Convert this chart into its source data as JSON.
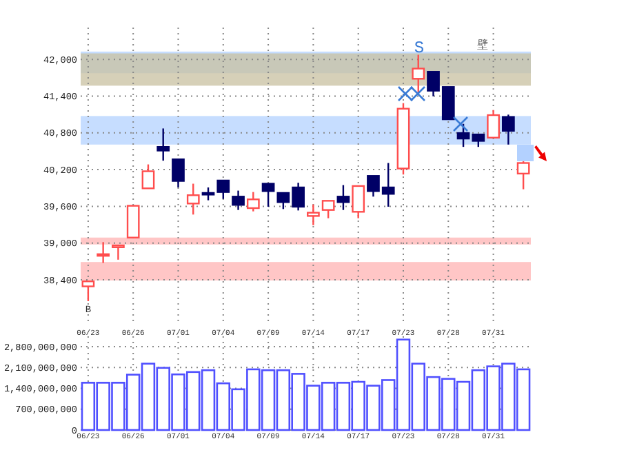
{
  "chart_data": [
    {
      "type": "candlestick",
      "categories": [
        "06/23",
        null,
        null,
        "06/26",
        null,
        null,
        "07/01",
        null,
        null,
        "07/04",
        null,
        null,
        "07/09",
        null,
        null,
        "07/14",
        null,
        null,
        "07/17",
        null,
        null,
        "07/23",
        null,
        null,
        "07/28",
        null,
        null,
        "07/31",
        null,
        null
      ],
      "ohlc": [
        [
          38293,
          38375,
          38052,
          38375
        ],
        [
          38819,
          39015,
          38676,
          38819
        ],
        [
          38932,
          38962,
          38729,
          38962
        ],
        [
          39090,
          39609,
          39090,
          39609
        ],
        [
          39894,
          40285,
          39894,
          40173
        ],
        [
          40571,
          40872,
          40346,
          40511
        ],
        [
          40368,
          40368,
          39909,
          40015
        ],
        [
          39646,
          39970,
          39466,
          39782
        ],
        [
          39819,
          39909,
          39699,
          39804
        ],
        [
          40022,
          40022,
          39721,
          39834
        ],
        [
          39759,
          39857,
          39541,
          39624
        ],
        [
          39571,
          39834,
          39518,
          39714
        ],
        [
          39970,
          39970,
          39594,
          39849
        ],
        [
          39819,
          39819,
          39556,
          39669
        ],
        [
          39909,
          39985,
          39533,
          39594
        ],
        [
          39443,
          39631,
          39293,
          39496
        ],
        [
          39541,
          39691,
          39406,
          39691
        ],
        [
          39759,
          39947,
          39541,
          39669
        ],
        [
          39511,
          39932,
          39406,
          39932
        ],
        [
          40097,
          40097,
          39759,
          39849
        ],
        [
          39909,
          40308,
          39594,
          39804
        ],
        [
          40218,
          41286,
          40120,
          41195
        ],
        [
          41684,
          42075,
          41436,
          41850
        ],
        [
          41797,
          41797,
          41398,
          41489
        ],
        [
          41549,
          41549,
          41022,
          41022
        ],
        [
          40797,
          40947,
          40571,
          40707
        ],
        [
          40774,
          40774,
          40571,
          40669
        ],
        [
          40722,
          41173,
          40722,
          41090
        ],
        [
          41060,
          41098,
          40609,
          40834
        ],
        [
          40135,
          40360,
          39879,
          40308
        ]
      ],
      "colors": [
        "#ff4d4d",
        "#ff4d4d",
        "#ff4d4d",
        "#ff4d4d",
        "#ff4d4d",
        "#000066",
        "#000066",
        "#ff4d4d",
        "#000066",
        "#000066",
        "#000066",
        "#ff4d4d",
        "#000066",
        "#000066",
        "#000066",
        "#ff4d4d",
        "#ff4d4d",
        "#000066",
        "#ff4d4d",
        "#000066",
        "#000066",
        "#ff4d4d",
        "#ff4d4d",
        "#000066",
        "#000066",
        "#000066",
        "#000066",
        "#ff4d4d",
        "#000066",
        "#ff4d4d"
      ],
      "ylim": [
        37680,
        42520
      ],
      "yticks": [
        {
          "value": 38400,
          "label": "38,400"
        },
        {
          "value": 39000,
          "label": "39,000"
        },
        {
          "value": 39600,
          "label": "39,600"
        },
        {
          "value": 40200,
          "label": "40,200"
        },
        {
          "value": 40800,
          "label": "40,800"
        },
        {
          "value": 41400,
          "label": "41,400"
        },
        {
          "value": 42000,
          "label": "42,000"
        }
      ],
      "grid": true,
      "bands": [
        {
          "axis": "y",
          "from": 41774,
          "to": 42128,
          "color": "#b3d1ff"
        },
        {
          "axis": "y",
          "from": 40609,
          "to": 41075,
          "color": "#b3d1ff"
        },
        {
          "axis": "y",
          "from": 41571,
          "to": 42098,
          "color": "#c8c0a0"
        },
        {
          "axis": "y",
          "from": 38977,
          "to": 39090,
          "color": "#ffb3b3"
        },
        {
          "axis": "y",
          "from": 38390,
          "to": 38691,
          "color": "#ffb3b3"
        }
      ],
      "annotations": [
        {
          "text": "B",
          "x": "06/23",
          "y": 37941
        },
        "S",
        "壁"
      ]
    },
    {
      "type": "bar",
      "categories": [
        "06/23",
        null,
        null,
        "06/26",
        null,
        null,
        "07/01",
        null,
        null,
        "07/04",
        null,
        null,
        "07/09",
        null,
        null,
        "07/14",
        null,
        null,
        "07/17",
        null,
        null,
        "07/23",
        null,
        null,
        "07/28",
        null,
        null,
        "07/31",
        null,
        null
      ],
      "values": [
        1590000000,
        1590000000,
        1590000000,
        1860000000,
        2230000000,
        2090000000,
        1870000000,
        1950000000,
        2010000000,
        1570000000,
        1370000000,
        2040000000,
        2010000000,
        2010000000,
        1890000000,
        1490000000,
        1590000000,
        1590000000,
        1620000000,
        1490000000,
        1680000000,
        3040000000,
        2230000000,
        1780000000,
        1720000000,
        1620000000,
        2010000000,
        2140000000,
        2230000000,
        2040000000
      ],
      "color": "#5050ff",
      "ylim": [
        0,
        3150000000
      ],
      "yticks": [
        0,
        {
          "value": 700000000,
          "label": "700,000,000"
        },
        {
          "value": 1400000000,
          "label": "1,400,000,000"
        },
        {
          "value": 2100000000,
          "label": "2,100,000,000"
        },
        {
          "value": 2800000000,
          "label": "2,800,000,000"
        }
      ],
      "grid": true
    }
  ]
}
